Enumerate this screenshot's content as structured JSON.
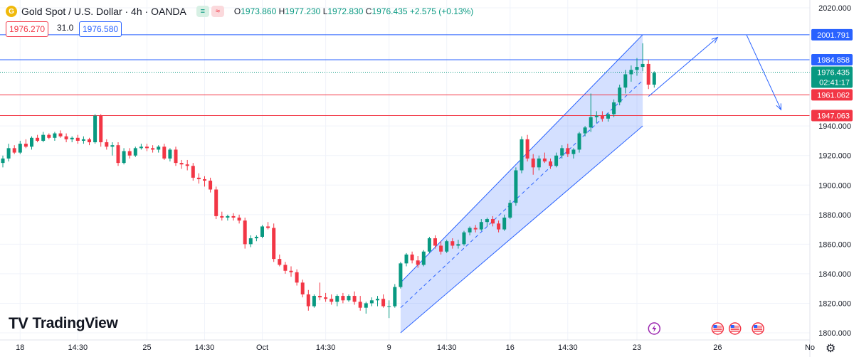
{
  "header": {
    "symbol": "Gold Spot / U.S. Dollar · 4h · OANDA",
    "icon_glyph": "G",
    "chip_green": "≡",
    "chip_red": "≈",
    "open_label": "O",
    "open": "1973.860",
    "high_label": "H",
    "high": "1977.230",
    "low_label": "L",
    "low": "1972.830",
    "close_label": "C",
    "close": "1976.435",
    "change": "+2.575 (+0.13%)"
  },
  "order": {
    "sell": "1976.270",
    "spread": "31.0",
    "buy": "1976.580"
  },
  "watermark": {
    "text": "TradingView",
    "mark": "TV"
  },
  "settings_icon": "⚙",
  "chart_data": {
    "type": "candlestick",
    "title": "Gold Spot / U.S. Dollar · 4h · OANDA",
    "ylim": [
      1800,
      2020
    ],
    "y_ticks": [
      "2020.000",
      "1940.000",
      "1920.000",
      "1900.000",
      "1880.000",
      "1860.000",
      "1840.000",
      "1820.000",
      "1800.000"
    ],
    "x_ticks": [
      "18",
      "14:30",
      "25",
      "14:30",
      "Oct",
      "14:30",
      "9",
      "14:30",
      "16",
      "14:30",
      "23",
      "26",
      "No"
    ],
    "candles_ohlc": [
      [
        1915,
        1920,
        1912,
        1918
      ],
      [
        1918,
        1928,
        1916,
        1925
      ],
      [
        1925,
        1927,
        1921,
        1922
      ],
      [
        1922,
        1930,
        1921,
        1928
      ],
      [
        1928,
        1931,
        1925,
        1926
      ],
      [
        1926,
        1933,
        1924,
        1932
      ],
      [
        1932,
        1934,
        1929,
        1930
      ],
      [
        1930,
        1936,
        1929,
        1934
      ],
      [
        1934,
        1935,
        1931,
        1932
      ],
      [
        1932,
        1936,
        1930,
        1935
      ],
      [
        1935,
        1937,
        1932,
        1933
      ],
      [
        1933,
        1935,
        1929,
        1931
      ],
      [
        1931,
        1933,
        1929,
        1932
      ],
      [
        1932,
        1934,
        1928,
        1930
      ],
      [
        1930,
        1933,
        1928,
        1931
      ],
      [
        1931,
        1932,
        1927,
        1929
      ],
      [
        1929,
        1948,
        1928,
        1947
      ],
      [
        1947,
        1948,
        1926,
        1929
      ],
      [
        1929,
        1931,
        1924,
        1926
      ],
      [
        1926,
        1929,
        1920,
        1927
      ],
      [
        1927,
        1929,
        1913,
        1915
      ],
      [
        1915,
        1925,
        1914,
        1923
      ],
      [
        1923,
        1925,
        1918,
        1920
      ],
      [
        1920,
        1926,
        1919,
        1925
      ],
      [
        1925,
        1928,
        1924,
        1926
      ],
      [
        1926,
        1928,
        1923,
        1925
      ],
      [
        1925,
        1927,
        1922,
        1924
      ],
      [
        1924,
        1927,
        1922,
        1926
      ],
      [
        1926,
        1928,
        1917,
        1918
      ],
      [
        1918,
        1925,
        1916,
        1924
      ],
      [
        1924,
        1926,
        1913,
        1915
      ],
      [
        1915,
        1917,
        1911,
        1914
      ],
      [
        1914,
        1917,
        1910,
        1913
      ],
      [
        1913,
        1915,
        1903,
        1905
      ],
      [
        1905,
        1908,
        1901,
        1904
      ],
      [
        1904,
        1906,
        1899,
        1903
      ],
      [
        1903,
        1905,
        1895,
        1897
      ],
      [
        1897,
        1899,
        1877,
        1879
      ],
      [
        1879,
        1882,
        1876,
        1878
      ],
      [
        1878,
        1880,
        1876,
        1879
      ],
      [
        1879,
        1881,
        1876,
        1878
      ],
      [
        1878,
        1880,
        1874,
        1876
      ],
      [
        1876,
        1878,
        1857,
        1860
      ],
      [
        1860,
        1866,
        1858,
        1864
      ],
      [
        1864,
        1866,
        1862,
        1865
      ],
      [
        1865,
        1873,
        1864,
        1872
      ],
      [
        1872,
        1875,
        1870,
        1871
      ],
      [
        1871,
        1874,
        1848,
        1850
      ],
      [
        1850,
        1853,
        1845,
        1846
      ],
      [
        1846,
        1848,
        1840,
        1842
      ],
      [
        1842,
        1845,
        1838,
        1841
      ],
      [
        1841,
        1843,
        1832,
        1834
      ],
      [
        1834,
        1836,
        1824,
        1826
      ],
      [
        1826,
        1829,
        1815,
        1818
      ],
      [
        1818,
        1826,
        1817,
        1825
      ],
      [
        1825,
        1834,
        1822,
        1824
      ],
      [
        1824,
        1827,
        1821,
        1823
      ],
      [
        1823,
        1826,
        1819,
        1821
      ],
      [
        1821,
        1826,
        1818,
        1825
      ],
      [
        1825,
        1827,
        1820,
        1822
      ],
      [
        1822,
        1826,
        1821,
        1825
      ],
      [
        1825,
        1828,
        1819,
        1821
      ],
      [
        1821,
        1825,
        1815,
        1817
      ],
      [
        1817,
        1821,
        1813,
        1820
      ],
      [
        1820,
        1824,
        1818,
        1822
      ],
      [
        1822,
        1825,
        1818,
        1823
      ],
      [
        1823,
        1826,
        1817,
        1818
      ],
      [
        1818,
        1822,
        1810,
        1818
      ],
      [
        1818,
        1833,
        1817,
        1831
      ],
      [
        1831,
        1848,
        1830,
        1847
      ],
      [
        1847,
        1854,
        1845,
        1853
      ],
      [
        1853,
        1855,
        1847,
        1849
      ],
      [
        1849,
        1852,
        1844,
        1846
      ],
      [
        1846,
        1856,
        1845,
        1855
      ],
      [
        1855,
        1865,
        1854,
        1864
      ],
      [
        1864,
        1866,
        1857,
        1859
      ],
      [
        1859,
        1862,
        1853,
        1855
      ],
      [
        1855,
        1863,
        1854,
        1862
      ],
      [
        1862,
        1864,
        1857,
        1859
      ],
      [
        1859,
        1863,
        1857,
        1860
      ],
      [
        1860,
        1869,
        1859,
        1868
      ],
      [
        1868,
        1872,
        1866,
        1871
      ],
      [
        1871,
        1873,
        1868,
        1870
      ],
      [
        1870,
        1877,
        1869,
        1875
      ],
      [
        1875,
        1878,
        1872,
        1877
      ],
      [
        1877,
        1879,
        1872,
        1874
      ],
      [
        1874,
        1876,
        1868,
        1870
      ],
      [
        1870,
        1880,
        1869,
        1878
      ],
      [
        1878,
        1890,
        1877,
        1888
      ],
      [
        1888,
        1912,
        1886,
        1910
      ],
      [
        1910,
        1933,
        1908,
        1931
      ],
      [
        1931,
        1934,
        1916,
        1918
      ],
      [
        1918,
        1921,
        1907,
        1912
      ],
      [
        1912,
        1920,
        1910,
        1918
      ],
      [
        1918,
        1922,
        1915,
        1916
      ],
      [
        1916,
        1918,
        1911,
        1913
      ],
      [
        1913,
        1922,
        1912,
        1920
      ],
      [
        1920,
        1927,
        1918,
        1925
      ],
      [
        1925,
        1928,
        1919,
        1921
      ],
      [
        1921,
        1925,
        1918,
        1924
      ],
      [
        1924,
        1936,
        1922,
        1935
      ],
      [
        1935,
        1940,
        1933,
        1939
      ],
      [
        1939,
        1962,
        1936,
        1946
      ],
      [
        1946,
        1950,
        1942,
        1947
      ],
      [
        1947,
        1950,
        1943,
        1945
      ],
      [
        1945,
        1949,
        1943,
        1948
      ],
      [
        1948,
        1958,
        1946,
        1956
      ],
      [
        1956,
        1968,
        1954,
        1966
      ],
      [
        1966,
        1978,
        1962,
        1975
      ],
      [
        1975,
        1981,
        1970,
        1978
      ],
      [
        1978,
        1986,
        1974,
        1980
      ],
      [
        1980,
        1996,
        1977,
        1982
      ],
      [
        1982,
        1985,
        1965,
        1968
      ],
      [
        1968,
        1977,
        1966,
        1976
      ]
    ],
    "horizontal_levels": [
      {
        "label": "2001.791",
        "color": "#2962ff",
        "value": 2001.791
      },
      {
        "label": "1984.858",
        "color": "#2962ff",
        "value": 1984.858
      },
      {
        "label": "1961.062",
        "color": "#f23645",
        "value": 1961.062
      },
      {
        "label": "1947.063",
        "color": "#f23645",
        "value": 1947.063
      }
    ],
    "last_price": {
      "label": "1976.435",
      "countdown": "02:41:17",
      "value": 1976.435,
      "color": "#089981"
    },
    "channel": {
      "upper": [
        [
          69,
          1834
        ],
        [
          111,
          2001.8
        ]
      ],
      "lower": [
        [
          69,
          1800
        ],
        [
          111,
          1940
        ]
      ],
      "mid": [
        [
          69,
          1817
        ],
        [
          111,
          1970.9
        ]
      ]
    },
    "projection": [
      [
        112,
        1960
      ],
      [
        124,
        2000
      ],
      [
        129,
        2001.8
      ],
      [
        135,
        1951
      ]
    ],
    "colors": {
      "up": "#089981",
      "down": "#f23645",
      "channel_fill": "#2962ff",
      "line": "#2962ff"
    },
    "event_icons": [
      "lightning-icon",
      "us-flag-icon",
      "us-flag-icon",
      "us-flag-icon"
    ],
    "event_positions": [
      113,
      124,
      127,
      131
    ],
    "x_tick_positions": [
      3,
      13,
      25,
      35,
      45,
      56,
      67,
      77,
      88,
      98,
      110,
      124,
      140
    ]
  }
}
